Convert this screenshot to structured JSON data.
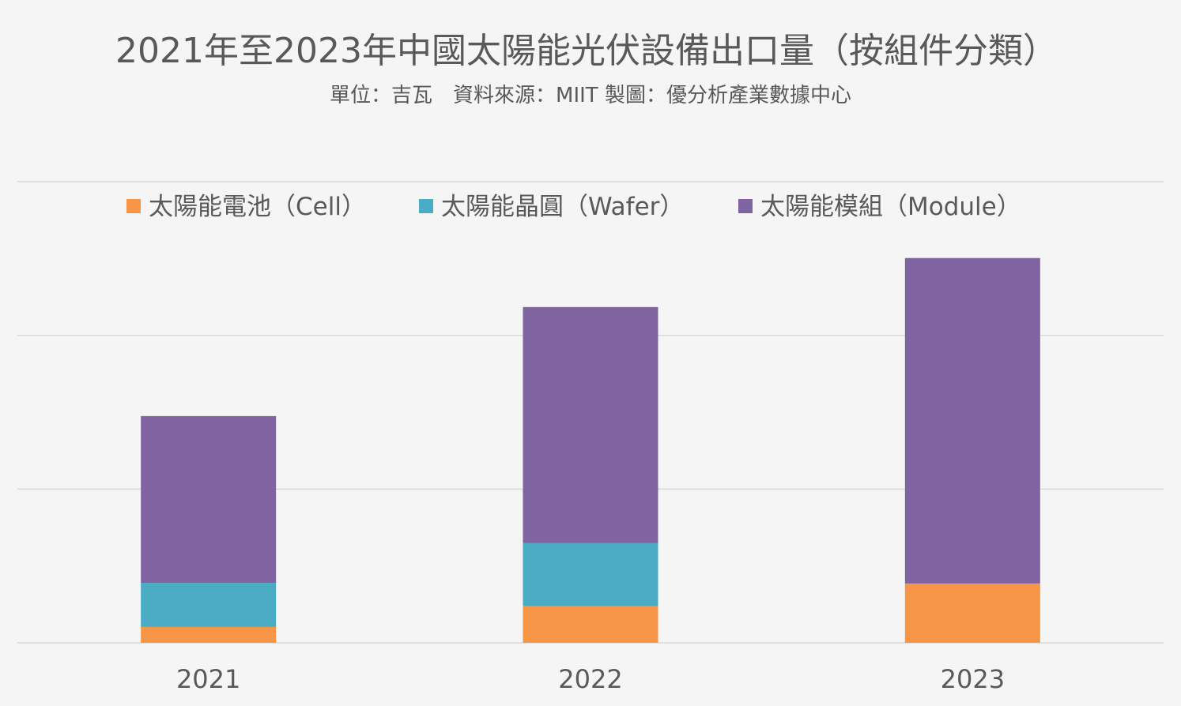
{
  "chart_data": {
    "type": "bar",
    "stacked": true,
    "title": "2021年至2023年中國太陽能光伏設備出口量（按組件分類）",
    "subtitle": "單位：吉瓦　資料來源：MIIT 製圖：優分析產業數據中心",
    "categories": [
      "2021",
      "2022",
      "2023"
    ],
    "series": [
      {
        "name": "太陽能電池（Cell）",
        "values": [
          10.3,
          23.8,
          38.6
        ],
        "color": "#f79646"
      },
      {
        "name": "太陽能晶圓（Wafer）",
        "values": [
          28.7,
          41.0,
          0
        ],
        "color": "#4bacc6"
      },
      {
        "name": "太陽能模組（Module）",
        "values": [
          108.5,
          153.6,
          211.7
        ],
        "color": "#8064a2"
      }
    ],
    "ylim": [
      0,
      300
    ],
    "ygrid_step": 100,
    "grid": true,
    "legend_position": "top",
    "xlabel": "",
    "ylabel": ""
  }
}
